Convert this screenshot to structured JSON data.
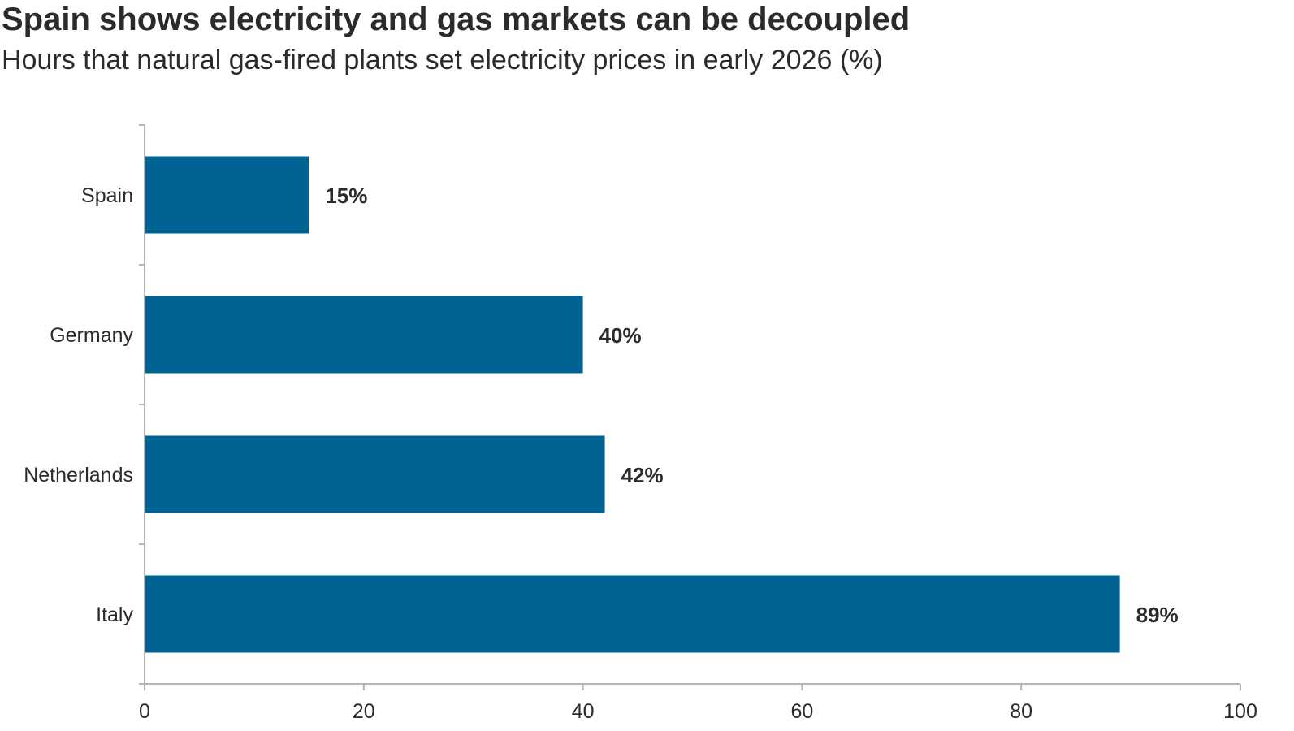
{
  "chart_data": {
    "type": "bar",
    "orientation": "horizontal",
    "title": "Spain shows electricity and gas markets can be decoupled",
    "subtitle": "Hours that natural gas-fired plants set electricity prices in early 2026 (%)",
    "categories": [
      "Spain",
      "Germany",
      "Netherlands",
      "Italy"
    ],
    "values": [
      15,
      40,
      42,
      89
    ],
    "value_labels": [
      "15%",
      "40%",
      "42%",
      "89%"
    ],
    "xlim": [
      0,
      100
    ],
    "xticks": [
      0,
      20,
      40,
      60,
      80,
      100
    ],
    "xtick_labels": [
      "0",
      "20",
      "40",
      "60",
      "80",
      "100"
    ],
    "xlabel": "",
    "ylabel": "",
    "grid": false,
    "legend": "none",
    "bar_color": "#006394",
    "axis_color": "#b5b5b5"
  }
}
